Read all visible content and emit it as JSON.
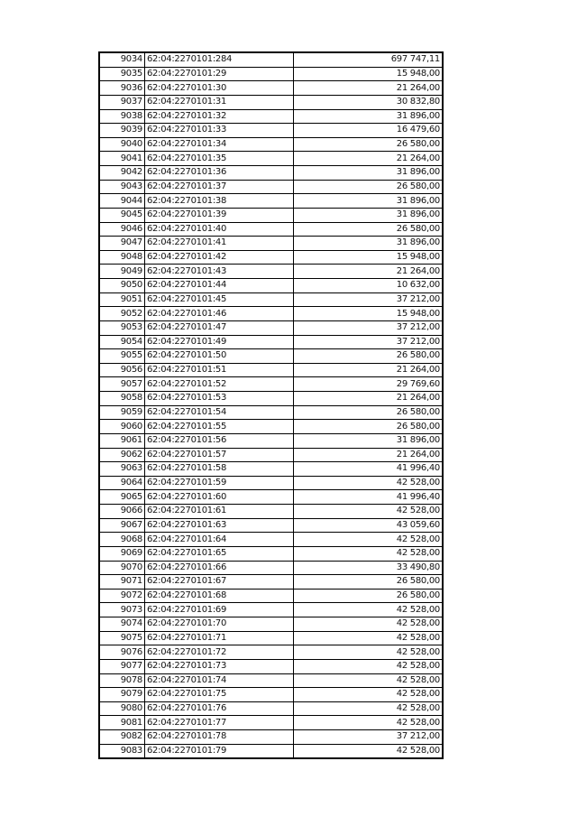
{
  "table": {
    "rows": [
      [
        "9034",
        "62:04:2270101:284",
        "697 747,11"
      ],
      [
        "9035",
        "62:04:2270101:29",
        "15 948,00"
      ],
      [
        "9036",
        "62:04:2270101:30",
        "21 264,00"
      ],
      [
        "9037",
        "62:04:2270101:31",
        "30 832,80"
      ],
      [
        "9038",
        "62:04:2270101:32",
        "31 896,00"
      ],
      [
        "9039",
        "62:04:2270101:33",
        "16 479,60"
      ],
      [
        "9040",
        "62:04:2270101:34",
        "26 580,00"
      ],
      [
        "9041",
        "62:04:2270101:35",
        "21 264,00"
      ],
      [
        "9042",
        "62:04:2270101:36",
        "31 896,00"
      ],
      [
        "9043",
        "62:04:2270101:37",
        "26 580,00"
      ],
      [
        "9044",
        "62:04:2270101:38",
        "31 896,00"
      ],
      [
        "9045",
        "62:04:2270101:39",
        "31 896,00"
      ],
      [
        "9046",
        "62:04:2270101:40",
        "26 580,00"
      ],
      [
        "9047",
        "62:04:2270101:41",
        "31 896,00"
      ],
      [
        "9048",
        "62:04:2270101:42",
        "15 948,00"
      ],
      [
        "9049",
        "62:04:2270101:43",
        "21 264,00"
      ],
      [
        "9050",
        "62:04:2270101:44",
        "10 632,00"
      ],
      [
        "9051",
        "62:04:2270101:45",
        "37 212,00"
      ],
      [
        "9052",
        "62:04:2270101:46",
        "15 948,00"
      ],
      [
        "9053",
        "62:04:2270101:47",
        "37 212,00"
      ],
      [
        "9054",
        "62:04:2270101:49",
        "37 212,00"
      ],
      [
        "9055",
        "62:04:2270101:50",
        "26 580,00"
      ],
      [
        "9056",
        "62:04:2270101:51",
        "21 264,00"
      ],
      [
        "9057",
        "62:04:2270101:52",
        "29 769,60"
      ],
      [
        "9058",
        "62:04:2270101:53",
        "21 264,00"
      ],
      [
        "9059",
        "62:04:2270101:54",
        "26 580,00"
      ],
      [
        "9060",
        "62:04:2270101:55",
        "26 580,00"
      ],
      [
        "9061",
        "62:04:2270101:56",
        "31 896,00"
      ],
      [
        "9062",
        "62:04:2270101:57",
        "21 264,00"
      ],
      [
        "9063",
        "62:04:2270101:58",
        "41 996,40"
      ],
      [
        "9064",
        "62:04:2270101:59",
        "42 528,00"
      ],
      [
        "9065",
        "62:04:2270101:60",
        "41 996,40"
      ],
      [
        "9066",
        "62:04:2270101:61",
        "42 528,00"
      ],
      [
        "9067",
        "62:04:2270101:63",
        "43 059,60"
      ],
      [
        "9068",
        "62:04:2270101:64",
        "42 528,00"
      ],
      [
        "9069",
        "62:04:2270101:65",
        "42 528,00"
      ],
      [
        "9070",
        "62:04:2270101:66",
        "33 490,80"
      ],
      [
        "9071",
        "62:04:2270101:67",
        "26 580,00"
      ],
      [
        "9072",
        "62:04:2270101:68",
        "26 580,00"
      ],
      [
        "9073",
        "62:04:2270101:69",
        "42 528,00"
      ],
      [
        "9074",
        "62:04:2270101:70",
        "42 528,00"
      ],
      [
        "9075",
        "62:04:2270101:71",
        "42 528,00"
      ],
      [
        "9076",
        "62:04:2270101:72",
        "42 528,00"
      ],
      [
        "9077",
        "62:04:2270101:73",
        "42 528,00"
      ],
      [
        "9078",
        "62:04:2270101:74",
        "42 528,00"
      ],
      [
        "9079",
        "62:04:2270101:75",
        "42 528,00"
      ],
      [
        "9080",
        "62:04:2270101:76",
        "42 528,00"
      ],
      [
        "9081",
        "62:04:2270101:77",
        "42 528,00"
      ],
      [
        "9082",
        "62:04:2270101:78",
        "37 212,00"
      ],
      [
        "9083",
        "62:04:2270101:79",
        "42 528,00"
      ]
    ]
  }
}
